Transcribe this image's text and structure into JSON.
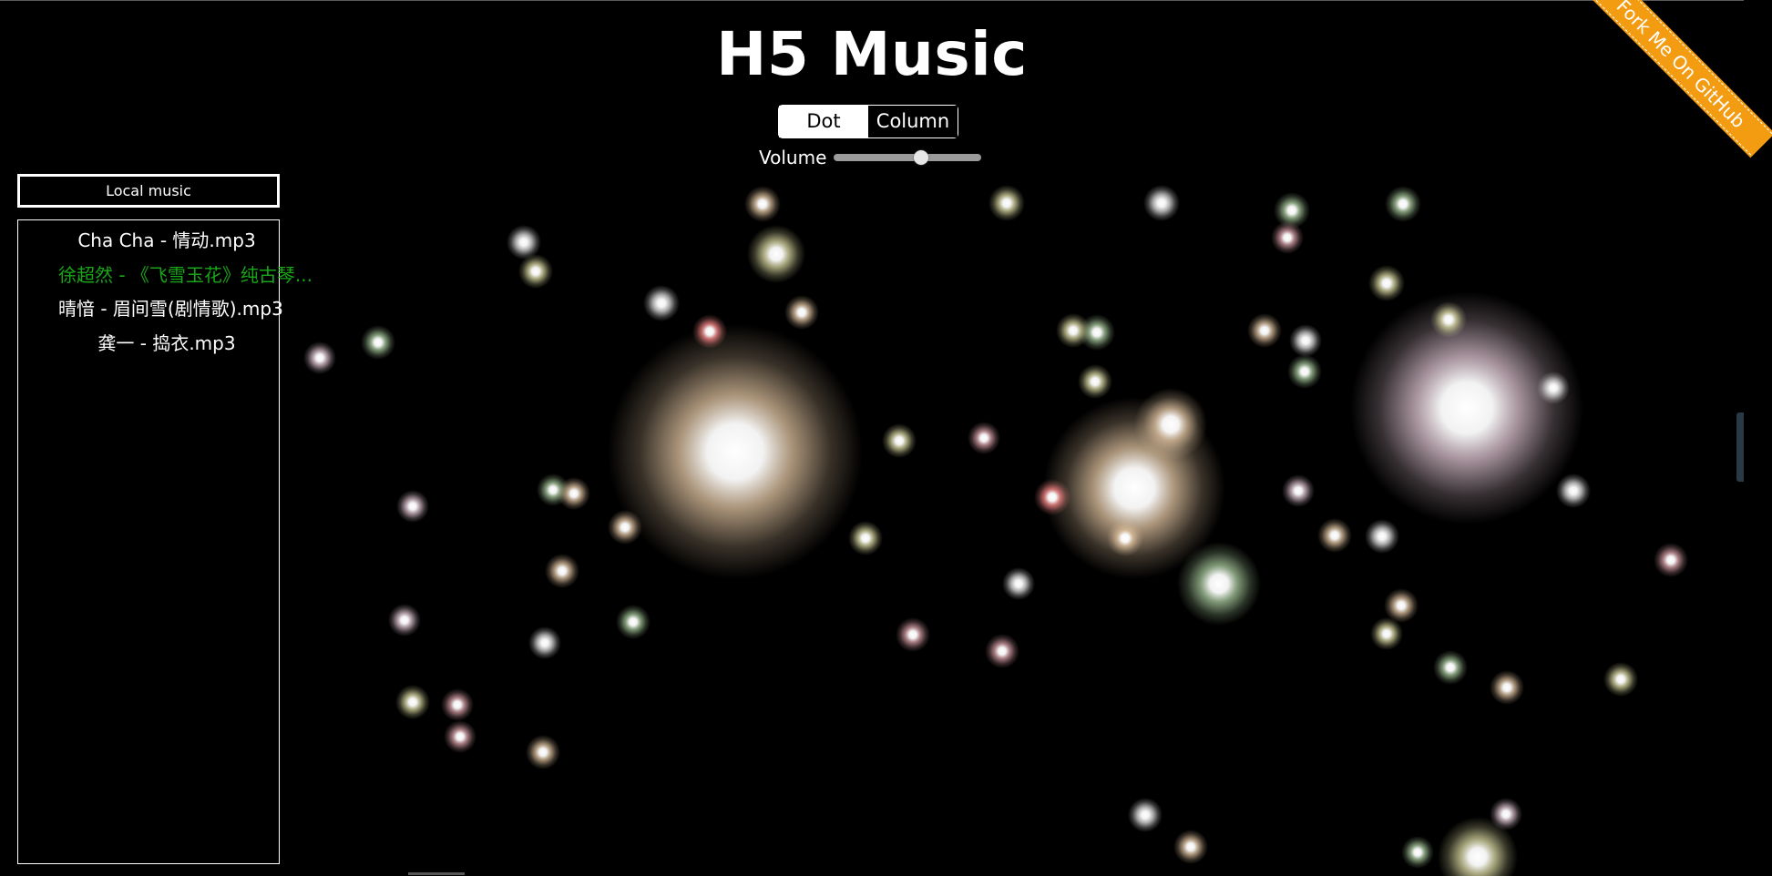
{
  "header": {
    "title": "H5 Music"
  },
  "mode_switch": {
    "options": [
      {
        "label": "Dot",
        "active": true
      },
      {
        "label": "Column",
        "active": false
      }
    ]
  },
  "volume": {
    "label": "Volume",
    "level": 0.6
  },
  "github_ribbon": {
    "label": "Fork Me On GitHub",
    "color": "#f39c12"
  },
  "sidebar": {
    "local_music_label": "Local music",
    "playlist": [
      {
        "name": "Cha Cha - 情动.mp3",
        "playing": false
      },
      {
        "name": "徐超然 - 《飞雪玉花》纯古琴...",
        "playing": true
      },
      {
        "name": "晴愔 - 眉间雪(剧情歌).mp3",
        "playing": false
      },
      {
        "name": "龚一 - 捣衣.mp3",
        "playing": false
      }
    ],
    "playing_color": "#19a519"
  }
}
